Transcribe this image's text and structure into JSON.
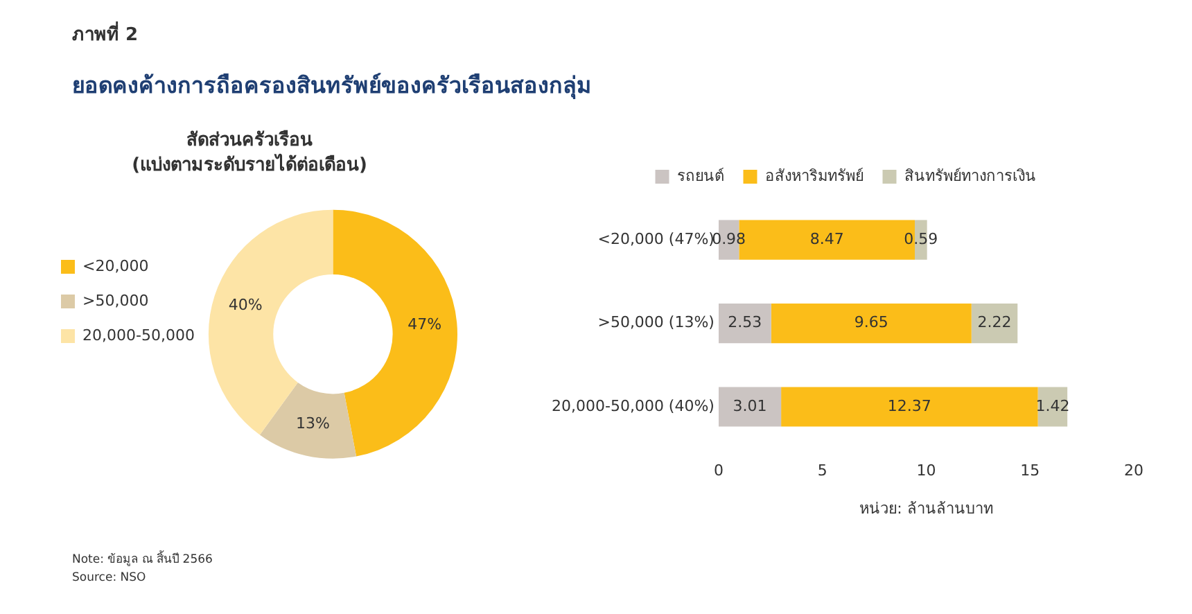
{
  "chart_data": [
    {
      "type": "other",
      "title": "ยอดคงค้างการถือครองสินทรัพย์ของครัวเรือนสองกลุ่ม",
      "annotations": [
        "ภาพที่ 2"
      ]
    },
    {
      "type": "donut",
      "title": "สัดส่วนครัวเรือน",
      "subtitle": "(แบ่งตามระดับรายได้ต่อเดือน)",
      "categories": [
        "<20,000",
        ">50,000",
        "20,000-50,000"
      ],
      "values": [
        47,
        13,
        40
      ],
      "colors": [
        "#fbbd19",
        "#dccaa6",
        "#fde4a6"
      ],
      "value_labels": [
        "47%",
        "13%",
        "40%"
      ],
      "legend": "left"
    },
    {
      "type": "bar",
      "orientation": "horizontal",
      "stacked": true,
      "categories": [
        "<20,000 (47%)",
        ">50,000 (13%)",
        "20,000-50,000 (40%)"
      ],
      "series": [
        {
          "name": "รถยนต์",
          "color": "#cbc4c2",
          "values": [
            0.98,
            2.53,
            3.01
          ]
        },
        {
          "name": "อสังหาริมทรัพย์",
          "color": "#fbbd19",
          "values": [
            8.47,
            9.65,
            12.37
          ]
        },
        {
          "name": "สินทรัพย์ทางการเงิน",
          "color": "#cbcab2",
          "values": [
            0.59,
            2.22,
            1.42
          ]
        }
      ],
      "xlim": [
        0,
        20
      ],
      "xticks": [
        0,
        5,
        10,
        15,
        20
      ],
      "xlabel": "หน่วย: ล้านล้านบาท",
      "data_labels": true,
      "legend": "top"
    },
    {
      "type": "other",
      "annotations": [
        "Note: ข้อมูล ณ สิ้นปี 2566",
        "Source: NSO"
      ]
    }
  ]
}
